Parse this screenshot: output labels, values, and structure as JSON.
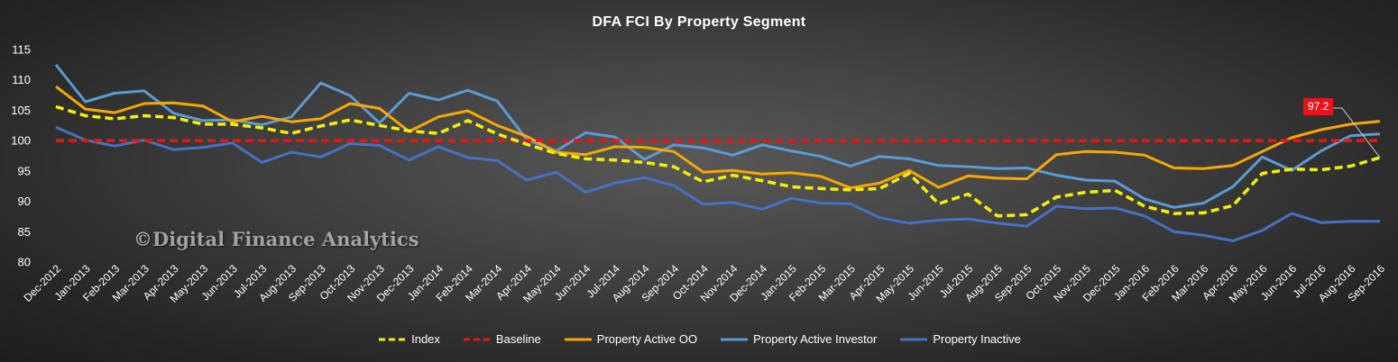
{
  "chart_data": {
    "type": "line",
    "title": "DFA FCI By Property  Segment",
    "xlabel": "",
    "ylabel": "",
    "ylim": [
      80,
      115
    ],
    "yticks": [
      80,
      85,
      90,
      95,
      100,
      105,
      110,
      115
    ],
    "grid": "off",
    "legend_placement": "bottom",
    "watermark": "©Digital Finance Analytics",
    "annotation": {
      "label": "97.2",
      "series": "Index",
      "x": "Sep-2016"
    },
    "categories": [
      "Dec-2012",
      "Jan-2013",
      "Feb-2013",
      "Mar-2013",
      "Apr-2013",
      "May-2013",
      "Jun-2013",
      "Jul-2013",
      "Aug-2013",
      "Sep-2013",
      "Oct-2013",
      "Nov-2013",
      "Dec-2013",
      "Jan-2014",
      "Feb-2014",
      "Mar-2014",
      "Apr-2014",
      "May-2014",
      "Jun-2014",
      "Jul-2014",
      "Aug-2014",
      "Sep-2014",
      "Oct-2014",
      "Nov-2014",
      "Dec-2014",
      "Jan-2015",
      "Feb-2015",
      "Mar-2015",
      "Apr-2015",
      "May-2015",
      "Jun-2015",
      "Jul-2015",
      "Aug-2015",
      "Sep-2015",
      "Oct-2015",
      "Nov-2015",
      "Dec-2015",
      "Jan-2016",
      "Feb-2016",
      "Mar-2016",
      "Apr-2016",
      "May-2016",
      "Jun-2016",
      "Jul-2016",
      "Aug-2016",
      "Sep-2016"
    ],
    "series": [
      {
        "name": "Index",
        "color": "#f5f000",
        "dash": "dashed",
        "width": 3.5,
        "values": [
          105.6,
          104.1,
          103.6,
          104.1,
          103.8,
          102.7,
          102.7,
          102.1,
          101.2,
          102.4,
          103.4,
          102.5,
          101.6,
          101.2,
          103.3,
          101.1,
          99.4,
          97.9,
          97.0,
          96.8,
          96.4,
          95.7,
          93.2,
          94.3,
          93.4,
          92.4,
          92.1,
          91.9,
          92.1,
          94.6,
          89.6,
          91.2,
          87.6,
          87.8,
          90.7,
          91.5,
          91.8,
          89.2,
          88.0,
          88.1,
          89.3,
          94.6,
          95.3,
          95.2,
          95.8,
          97.2
        ]
      },
      {
        "name": "Baseline",
        "color": "#e8141a",
        "dash": "dashed",
        "width": 3.5,
        "values": [
          100,
          100,
          100,
          100,
          100,
          100,
          100,
          100,
          100,
          100,
          100,
          100,
          100,
          100,
          100,
          100,
          100,
          100,
          100,
          100,
          100,
          100,
          100,
          100,
          100,
          100,
          100,
          100,
          100,
          100,
          100,
          100,
          100,
          100,
          100,
          100,
          100,
          100,
          100,
          100,
          100,
          100,
          100,
          100,
          100,
          100
        ]
      },
      {
        "name": "Property Active OO",
        "color": "#f7a800",
        "dash": "solid",
        "width": 3,
        "values": [
          108.9,
          105.2,
          104.6,
          106.1,
          106.2,
          105.7,
          103.1,
          104.0,
          103.1,
          103.6,
          106.1,
          105.3,
          101.5,
          103.9,
          104.9,
          102.5,
          100.7,
          98.1,
          97.7,
          99.0,
          98.9,
          98.2,
          94.8,
          95.1,
          94.5,
          94.7,
          94.1,
          92.2,
          93.0,
          95.1,
          92.3,
          94.2,
          93.8,
          93.7,
          97.7,
          98.2,
          98.1,
          97.6,
          95.5,
          95.4,
          95.9,
          98.2,
          100.5,
          101.8,
          102.7,
          103.2
        ]
      },
      {
        "name": "Property Active Investor",
        "color": "#5b9bd5",
        "dash": "solid",
        "width": 3,
        "values": [
          112.5,
          106.4,
          107.8,
          108.2,
          104.5,
          103.3,
          103.4,
          102.6,
          103.9,
          109.5,
          107.4,
          102.9,
          107.8,
          106.7,
          108.3,
          106.5,
          100.2,
          98.3,
          101.3,
          100.6,
          96.9,
          99.3,
          98.8,
          97.6,
          99.3,
          98.3,
          97.4,
          95.8,
          97.4,
          97.0,
          95.9,
          95.7,
          95.4,
          95.5,
          94.3,
          93.5,
          93.3,
          90.4,
          89.0,
          89.7,
          92.4,
          97.3,
          95.1,
          98.3,
          100.8,
          101.1
        ]
      },
      {
        "name": "Property Inactive",
        "color": "#4472c4",
        "dash": "solid",
        "width": 3,
        "values": [
          102.2,
          100.1,
          99.1,
          100.1,
          98.5,
          98.9,
          99.6,
          96.4,
          98.1,
          97.3,
          99.5,
          99.2,
          96.8,
          99.0,
          97.2,
          96.7,
          93.5,
          94.8,
          91.5,
          93.0,
          93.9,
          92.6,
          89.5,
          89.8,
          88.7,
          90.5,
          89.7,
          89.6,
          87.3,
          86.4,
          86.9,
          87.1,
          86.4,
          85.9,
          89.2,
          88.8,
          88.9,
          87.6,
          85.0,
          84.4,
          83.5,
          85.2,
          88.0,
          86.5,
          86.7,
          86.7
        ]
      }
    ]
  }
}
